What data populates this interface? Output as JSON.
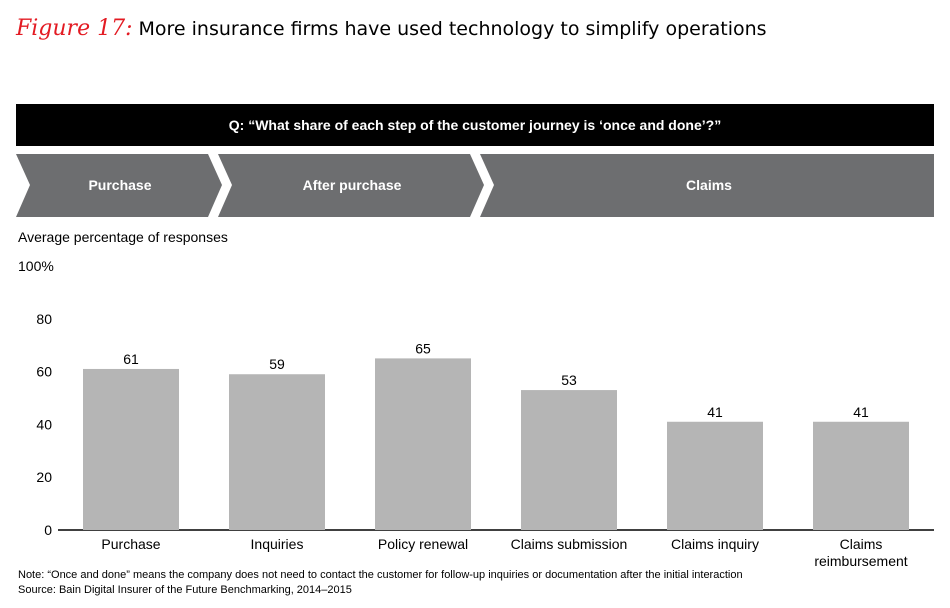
{
  "header": {
    "figure_label": "Figure 17:",
    "title": "More insurance firms have used technology to simplify operations"
  },
  "question_bar": "Q: “What share of each step of the customer journey is ‘once and done’?”",
  "stages": [
    "Purchase",
    "After purchase",
    "Claims"
  ],
  "colors": {
    "figure_label": "#e31b23",
    "question_bar": "#000000",
    "stage_chevron": "#6d6e70",
    "bar": "#b5b5b5"
  },
  "chart_data": {
    "type": "bar",
    "ylabel": "Average percentage of responses",
    "categories": [
      "Purchase",
      "Inquiries",
      "Policy renewal",
      "Claims submission",
      "Claims inquiry",
      "Claims reimbursement"
    ],
    "category_lines": [
      [
        "Purchase"
      ],
      [
        "Inquiries"
      ],
      [
        "Policy renewal"
      ],
      [
        "Claims submission"
      ],
      [
        "Claims inquiry"
      ],
      [
        "Claims",
        "reimbursement"
      ]
    ],
    "values": [
      61,
      59,
      65,
      53,
      41,
      41
    ],
    "ylim": [
      0,
      100
    ],
    "yticks": [
      "0",
      "20",
      "40",
      "60",
      "80",
      "100%"
    ],
    "grid": false,
    "data_labels": true
  },
  "notes": [
    "Note: “Once and done” means the company does not need to contact the customer for follow-up inquiries or documentation after the initial interaction",
    "Source: Bain Digital Insurer of the Future Benchmarking, 2014–2015"
  ]
}
